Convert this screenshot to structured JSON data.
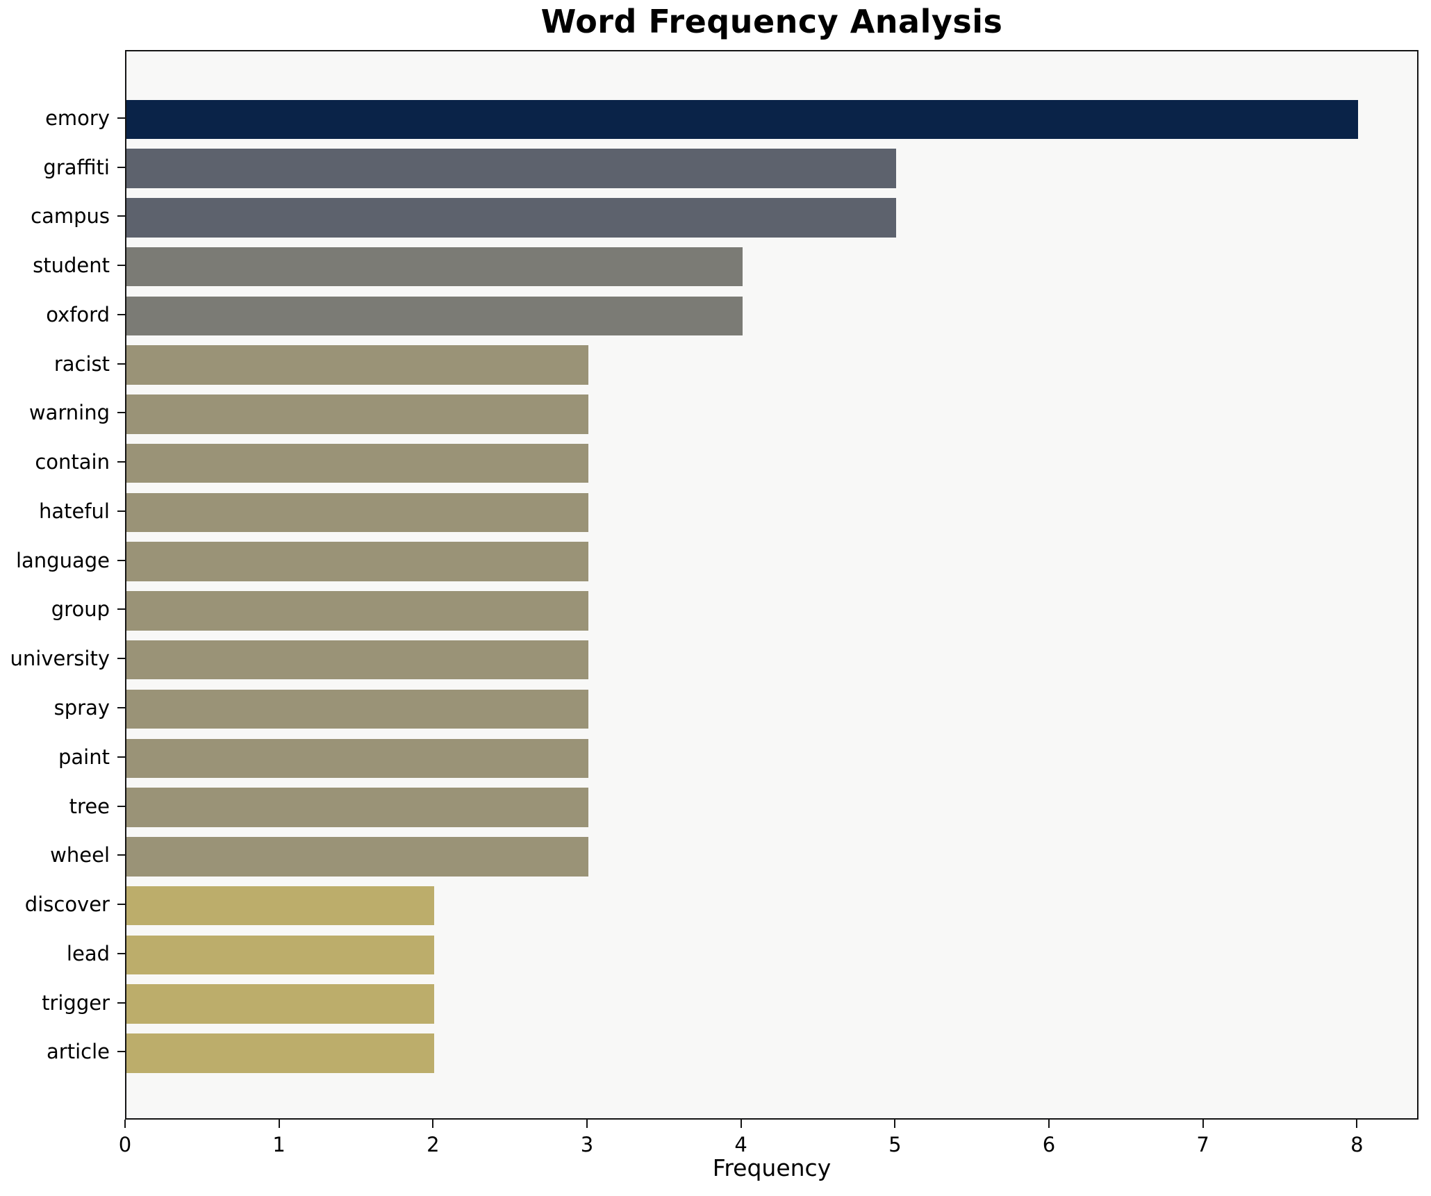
{
  "chart_data": {
    "type": "bar",
    "orientation": "horizontal",
    "title": "Word Frequency Analysis",
    "xlabel": "Frequency",
    "ylabel": "",
    "categories": [
      "emory",
      "graffiti",
      "campus",
      "student",
      "oxford",
      "racist",
      "warning",
      "contain",
      "hateful",
      "language",
      "group",
      "university",
      "spray",
      "paint",
      "tree",
      "wheel",
      "discover",
      "lead",
      "trigger",
      "article"
    ],
    "values": [
      8,
      5,
      5,
      4,
      4,
      3,
      3,
      3,
      3,
      3,
      3,
      3,
      3,
      3,
      3,
      3,
      2,
      2,
      2,
      2
    ],
    "xlim": [
      0,
      8.4
    ],
    "x_ticks": [
      0,
      1,
      2,
      3,
      4,
      5,
      6,
      7,
      8
    ],
    "grid": false,
    "legend": null,
    "value_color_map": {
      "8": "#0a2348",
      "5": "#5d626d",
      "4": "#7b7b75",
      "3": "#9a9377",
      "2": "#bcad6b"
    },
    "plot_background": "#f8f8f7",
    "figure_background": "#ffffff",
    "spine_color": "#141414",
    "text_color": "#000000"
  }
}
